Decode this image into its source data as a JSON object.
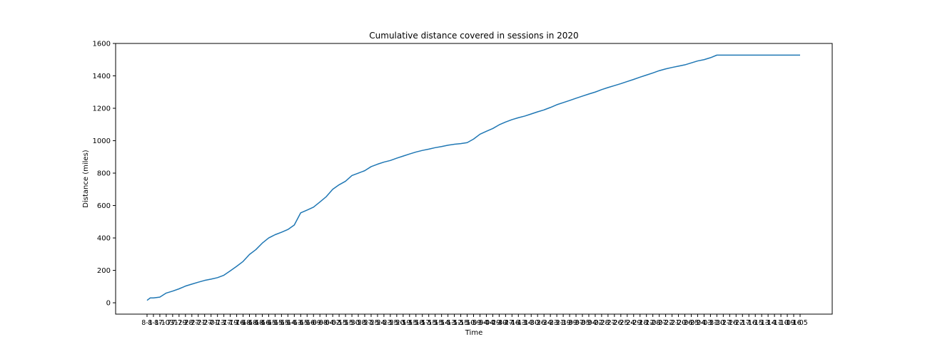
{
  "chart_data": {
    "type": "line",
    "title": "Cumulative distance covered in sessions in 2020",
    "xlabel": "Time",
    "ylabel": "Distance (miles)",
    "ylim": [
      -70,
      1600
    ],
    "yticks": [
      0,
      200,
      400,
      600,
      800,
      1000,
      1200,
      1400,
      1600
    ],
    "grid": false,
    "legend": "none",
    "xtick_labels": [
      "8-1",
      "8-1",
      "8-1",
      "7-03",
      "7-1",
      "7-29",
      "7-28",
      "7-27",
      "7-21",
      "7-27",
      "7-01",
      "7-13",
      "7-17",
      "7-19",
      "7-16",
      "7-18",
      "6-18",
      "6-18",
      "6-16",
      "6-15",
      "6-15",
      "6-15",
      "6-14",
      "6-13",
      "6-15",
      "6-16",
      "6-09",
      "6-08",
      "6-04",
      "6-02",
      "6-15",
      "5-15",
      "5-30",
      "5-28",
      "5-27",
      "5-25",
      "5-24",
      "5-23",
      "5-25",
      "5-20",
      "5-19",
      "5-15",
      "5-18",
      "5-17",
      "5-15",
      "5-15",
      "5-14",
      "5-13",
      "5-12",
      "5-15",
      "5-10",
      "5-09",
      "5-04",
      "5-04",
      "4-29",
      "4-30",
      "4-27",
      "4-16",
      "4-13",
      "4-14",
      "3-30",
      "3-26",
      "3-24",
      "3-23",
      "3-21",
      "3-19",
      "3-09",
      "3-07",
      "3-05",
      "3-04",
      "3-02",
      "2-28",
      "2-27",
      "2-26",
      "2-25",
      "2-24",
      "2-29",
      "2-18",
      "2-12",
      "2-08",
      "2-07",
      "2-22",
      "2-21",
      "2-20",
      "2-06",
      "2-05",
      "2-04",
      "2-03",
      "1-31",
      "1-30",
      "1-27",
      "1-26",
      "1-22",
      "1-17",
      "1-16",
      "1-15",
      "1-13",
      "1-14",
      "1-11",
      "1-10",
      "1-09",
      "1-16",
      "1-05"
    ],
    "series": [
      {
        "color": "#1f77b4",
        "x": [
          0,
          0.5,
          1,
          2,
          3,
          4,
          5,
          6,
          7,
          8,
          9,
          10,
          11,
          12,
          13,
          14,
          15,
          16,
          17,
          18,
          19,
          20,
          21,
          22,
          23,
          24,
          25,
          26,
          27,
          28,
          29,
          30,
          31,
          32,
          33,
          34,
          35,
          36,
          37,
          38,
          39,
          40,
          41,
          42,
          43,
          44,
          45,
          46,
          47,
          48,
          49,
          50,
          51,
          52,
          53,
          54,
          55,
          56,
          57,
          58,
          59,
          60,
          61,
          62,
          63,
          64,
          65,
          66,
          67,
          68,
          69,
          70,
          71,
          72,
          73,
          74,
          75,
          76,
          77,
          78,
          79,
          80,
          81,
          82,
          83,
          84,
          85,
          86,
          87,
          88,
          89,
          90,
          91,
          92,
          93,
          94,
          95,
          96,
          97,
          98,
          99,
          100,
          101,
          102
        ],
        "y": [
          15,
          30,
          30,
          35,
          60,
          72,
          86,
          103,
          115,
          127,
          138,
          146,
          155,
          170,
          197,
          225,
          255,
          298,
          328,
          368,
          400,
          420,
          435,
          452,
          480,
          555,
          572,
          590,
          622,
          655,
          700,
          728,
          750,
          785,
          800,
          815,
          840,
          855,
          868,
          878,
          892,
          905,
          918,
          930,
          940,
          948,
          957,
          964,
          972,
          978,
          982,
          988,
          1010,
          1040,
          1058,
          1075,
          1098,
          1115,
          1130,
          1142,
          1152,
          1165,
          1178,
          1190,
          1205,
          1222,
          1235,
          1248,
          1262,
          1275,
          1288,
          1300,
          1315,
          1328,
          1340,
          1352,
          1365,
          1378,
          1392,
          1405,
          1418,
          1432,
          1443,
          1452,
          1460,
          1468,
          1480,
          1492,
          1500,
          1512,
          1528,
          1528,
          1528,
          1528,
          1528,
          1528,
          1528,
          1528,
          1528,
          1528,
          1528,
          1528,
          1528,
          1528
        ]
      }
    ]
  }
}
